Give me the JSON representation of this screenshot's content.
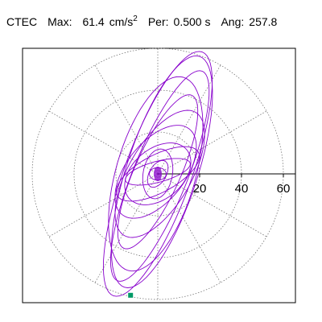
{
  "header": {
    "station": "CTEC",
    "max_label": "Max:",
    "max_value": "61.4",
    "max_unit_base": "cm/s",
    "max_unit_exp": "2",
    "per_label": "Per:",
    "per_value": "0.500 s",
    "ang_label": "Ang:",
    "ang_value": "257.8"
  },
  "chart_data": {
    "type": "scatter",
    "title": "CTEC Max: 61.4 cm/s2 Per: 0.500 s Ang: 257.8",
    "radial_ticks": [
      "20",
      "40",
      "60"
    ],
    "radial_tick_values": [
      20,
      40,
      60
    ],
    "r_max": 65,
    "grid": "dotted polar (circles + 30° spokes)",
    "colors": {
      "orbit": "#8800cc",
      "marker": "#009966",
      "grid": "#777777"
    },
    "orbit_loops": [
      {
        "major": 62,
        "minor": 16,
        "angle_deg": 70,
        "dx": 0,
        "dy": 0
      },
      {
        "major": 58,
        "minor": 17,
        "angle_deg": 72,
        "dx": 2,
        "dy": 1
      },
      {
        "major": 54,
        "minor": 13,
        "angle_deg": 68,
        "dx": 1,
        "dy": -1
      },
      {
        "major": 48,
        "minor": 19,
        "angle_deg": 74,
        "dx": -1,
        "dy": 0
      },
      {
        "major": 40,
        "minor": 11,
        "angle_deg": 66,
        "dx": 0,
        "dy": 1
      },
      {
        "major": 34,
        "minor": 15,
        "angle_deg": 60,
        "dx": 1,
        "dy": 0
      },
      {
        "major": 26,
        "minor": 14,
        "angle_deg": 52,
        "dx": -1,
        "dy": 1
      },
      {
        "major": 22,
        "minor": 9,
        "angle_deg": 28,
        "dx": 0,
        "dy": 0
      },
      {
        "major": 18,
        "minor": 12,
        "angle_deg": 40,
        "dx": 0,
        "dy": 0
      },
      {
        "major": 16,
        "minor": 5,
        "angle_deg": 15,
        "dx": 0,
        "dy": 1
      },
      {
        "major": 12,
        "minor": 7,
        "angle_deg": 80,
        "dx": 0,
        "dy": 0
      },
      {
        "major": 7,
        "minor": 4,
        "angle_deg": 60,
        "dx": 0,
        "dy": 0
      },
      {
        "major": 4,
        "minor": 3,
        "angle_deg": 0,
        "dx": 0,
        "dy": 0
      }
    ],
    "max_point": {
      "x": -13,
      "y": -58
    }
  }
}
